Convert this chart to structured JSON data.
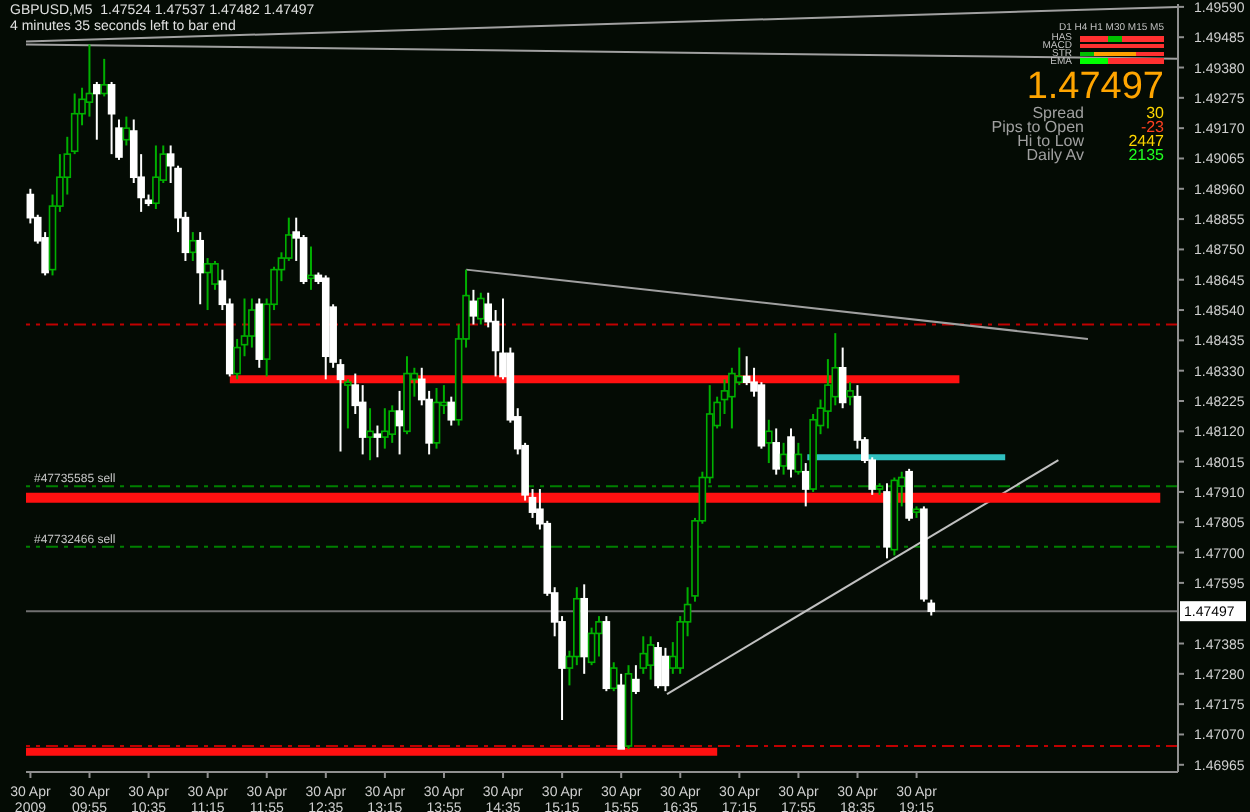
{
  "chart_data": {
    "type": "candlestick",
    "title": "GBPUSD,M5  1.47524 1.47537 1.47482 1.47497",
    "subtitle": "4 minutes 35 seconds left to bar end",
    "annotations": [
      "1.47497",
      "Spread",
      "30",
      "Pips to Open",
      "-23",
      "Hi to Low",
      "2447",
      "Daily Av",
      "2135",
      "D1 H4 H1 M30 M15 M5",
      "HAS",
      "MACD",
      "STR",
      "EMA"
    ],
    "x": [
      "2009-04-30T09:15",
      "2009-04-30T09:20",
      "2009-04-30T09:25",
      "2009-04-30T09:30",
      "2009-04-30T09:35",
      "2009-04-30T09:40",
      "2009-04-30T09:45",
      "2009-04-30T09:50",
      "2009-04-30T09:55",
      "2009-04-30T10:00",
      "2009-04-30T10:05",
      "2009-04-30T10:10",
      "2009-04-30T10:15",
      "2009-04-30T10:20",
      "2009-04-30T10:25",
      "2009-04-30T10:30",
      "2009-04-30T10:35",
      "2009-04-30T10:40",
      "2009-04-30T10:45",
      "2009-04-30T10:50",
      "2009-04-30T10:55",
      "2009-04-30T11:00",
      "2009-04-30T11:05",
      "2009-04-30T11:10",
      "2009-04-30T11:15",
      "2009-04-30T11:20",
      "2009-04-30T11:25",
      "2009-04-30T11:30",
      "2009-04-30T11:35",
      "2009-04-30T11:40",
      "2009-04-30T11:45",
      "2009-04-30T11:50",
      "2009-04-30T11:55",
      "2009-04-30T12:00",
      "2009-04-30T12:05",
      "2009-04-30T12:10",
      "2009-04-30T12:15",
      "2009-04-30T12:20",
      "2009-04-30T12:25",
      "2009-04-30T12:30",
      "2009-04-30T12:35",
      "2009-04-30T12:40",
      "2009-04-30T12:45",
      "2009-04-30T12:50",
      "2009-04-30T12:55",
      "2009-04-30T13:00",
      "2009-04-30T13:05",
      "2009-04-30T13:10",
      "2009-04-30T13:15",
      "2009-04-30T13:20",
      "2009-04-30T13:25",
      "2009-04-30T13:30",
      "2009-04-30T13:35",
      "2009-04-30T13:40",
      "2009-04-30T13:45",
      "2009-04-30T13:50",
      "2009-04-30T13:55",
      "2009-04-30T14:00",
      "2009-04-30T14:05",
      "2009-04-30T14:10",
      "2009-04-30T14:15",
      "2009-04-30T14:20",
      "2009-04-30T14:25",
      "2009-04-30T14:30",
      "2009-04-30T14:35",
      "2009-04-30T14:40",
      "2009-04-30T14:45",
      "2009-04-30T14:50",
      "2009-04-30T14:55",
      "2009-04-30T15:00",
      "2009-04-30T15:05",
      "2009-04-30T15:10",
      "2009-04-30T15:15",
      "2009-04-30T15:20",
      "2009-04-30T15:25",
      "2009-04-30T15:30",
      "2009-04-30T15:35",
      "2009-04-30T15:40",
      "2009-04-30T15:45",
      "2009-04-30T15:50",
      "2009-04-30T15:55",
      "2009-04-30T16:00",
      "2009-04-30T16:05",
      "2009-04-30T16:10",
      "2009-04-30T16:15",
      "2009-04-30T16:20",
      "2009-04-30T16:25",
      "2009-04-30T16:30",
      "2009-04-30T16:35",
      "2009-04-30T16:40",
      "2009-04-30T16:45",
      "2009-04-30T16:50",
      "2009-04-30T16:55",
      "2009-04-30T17:00",
      "2009-04-30T17:05",
      "2009-04-30T17:10",
      "2009-04-30T17:15",
      "2009-04-30T17:20",
      "2009-04-30T17:25",
      "2009-04-30T17:30",
      "2009-04-30T17:35",
      "2009-04-30T17:40",
      "2009-04-30T17:45",
      "2009-04-30T17:50",
      "2009-04-30T17:55",
      "2009-04-30T18:00",
      "2009-04-30T18:05",
      "2009-04-30T18:10",
      "2009-04-30T18:15",
      "2009-04-30T18:20",
      "2009-04-30T18:25",
      "2009-04-30T18:30",
      "2009-04-30T18:35",
      "2009-04-30T18:40",
      "2009-04-30T18:45",
      "2009-04-30T18:50",
      "2009-04-30T18:55",
      "2009-04-30T19:00",
      "2009-04-30T19:05",
      "2009-04-30T19:10",
      "2009-04-30T19:15",
      "2009-04-30T19:20",
      "2009-04-30T19:25"
    ],
    "ohlc": [
      [
        1.4894,
        1.4896,
        1.4884,
        1.4886
      ],
      [
        1.4886,
        1.4887,
        1.4877,
        1.4878
      ],
      [
        1.4879,
        1.4881,
        1.4866,
        1.4867
      ],
      [
        1.4868,
        1.4894,
        1.4866,
        1.489
      ],
      [
        1.489,
        1.4908,
        1.4888,
        1.49
      ],
      [
        1.49,
        1.4914,
        1.4894,
        1.4908
      ],
      [
        1.4909,
        1.4929,
        1.4908,
        1.4922
      ],
      [
        1.4922,
        1.4931,
        1.4918,
        1.4927
      ],
      [
        1.4926,
        1.4946,
        1.4921,
        1.4929
      ],
      [
        1.4932,
        1.4933,
        1.4913,
        1.4929
      ],
      [
        1.4929,
        1.4941,
        1.4928,
        1.4932
      ],
      [
        1.4932,
        1.4933,
        1.4908,
        1.4922
      ],
      [
        1.4917,
        1.492,
        1.4906,
        1.4907
      ],
      [
        1.4913,
        1.4921,
        1.4911,
        1.4917
      ],
      [
        1.4916,
        1.492,
        1.4898,
        1.49
      ],
      [
        1.49,
        1.4908,
        1.4888,
        1.4893
      ],
      [
        1.4892,
        1.4894,
        1.489,
        1.4891
      ],
      [
        1.4891,
        1.4911,
        1.4889,
        1.49
      ],
      [
        1.4899,
        1.4911,
        1.4898,
        1.4908
      ],
      [
        1.4908,
        1.4911,
        1.4898,
        1.4904
      ],
      [
        1.4903,
        1.4904,
        1.4881,
        1.4886
      ],
      [
        1.4886,
        1.4888,
        1.4871,
        1.4874
      ],
      [
        1.4874,
        1.4881,
        1.4871,
        1.4878
      ],
      [
        1.4878,
        1.4881,
        1.4856,
        1.4867
      ],
      [
        1.4867,
        1.4872,
        1.4854,
        1.487
      ],
      [
        1.4863,
        1.4871,
        1.4861,
        1.487
      ],
      [
        1.4864,
        1.4868,
        1.4854,
        1.4856
      ],
      [
        1.4856,
        1.4858,
        1.4831,
        1.4832
      ],
      [
        1.4832,
        1.4844,
        1.483,
        1.4841
      ],
      [
        1.4842,
        1.4858,
        1.4838,
        1.4845
      ],
      [
        1.4845,
        1.4858,
        1.4841,
        1.4854
      ],
      [
        1.4856,
        1.4858,
        1.4834,
        1.4837
      ],
      [
        1.4837,
        1.4858,
        1.4831,
        1.4856
      ],
      [
        1.4856,
        1.4869,
        1.4854,
        1.4868
      ],
      [
        1.4868,
        1.4874,
        1.4864,
        1.4872
      ],
      [
        1.4872,
        1.4886,
        1.4871,
        1.488
      ],
      [
        1.4881,
        1.4886,
        1.4871,
        1.4879
      ],
      [
        1.4879,
        1.488,
        1.4863,
        1.4864
      ],
      [
        1.4865,
        1.4876,
        1.4861,
        1.4866
      ],
      [
        1.4866,
        1.4867,
        1.4863,
        1.4864
      ],
      [
        1.4865,
        1.4866,
        1.483,
        1.4838
      ],
      [
        1.4855,
        1.4856,
        1.4834,
        1.4836
      ],
      [
        1.4835,
        1.4837,
        1.4805,
        1.483
      ],
      [
        1.4828,
        1.483,
        1.4813,
        1.4829
      ],
      [
        1.4828,
        1.4832,
        1.4818,
        1.4821
      ],
      [
        1.4822,
        1.4828,
        1.4804,
        1.481
      ],
      [
        1.481,
        1.482,
        1.4802,
        1.4812
      ],
      [
        1.4811,
        1.4814,
        1.4803,
        1.481
      ],
      [
        1.481,
        1.482,
        1.4806,
        1.4812
      ],
      [
        1.4811,
        1.4821,
        1.4808,
        1.4819
      ],
      [
        1.4819,
        1.4826,
        1.4804,
        1.4814
      ],
      [
        1.4812,
        1.4838,
        1.4811,
        1.4832
      ],
      [
        1.483,
        1.4834,
        1.4824,
        1.4832
      ],
      [
        1.483,
        1.4834,
        1.4821,
        1.4823
      ],
      [
        1.4823,
        1.4826,
        1.4804,
        1.4808
      ],
      [
        1.4808,
        1.4827,
        1.4806,
        1.4822
      ],
      [
        1.4821,
        1.4828,
        1.4818,
        1.4822
      ],
      [
        1.4822,
        1.4824,
        1.4814,
        1.4816
      ],
      [
        1.4816,
        1.4849,
        1.4814,
        1.4844
      ],
      [
        1.4844,
        1.4868,
        1.4841,
        1.4859
      ],
      [
        1.4857,
        1.4861,
        1.4849,
        1.4852
      ],
      [
        1.4851,
        1.486,
        1.4849,
        1.4858
      ],
      [
        1.4856,
        1.486,
        1.4848,
        1.485
      ],
      [
        1.485,
        1.4854,
        1.4831,
        1.484
      ],
      [
        1.4839,
        1.4858,
        1.483,
        1.4831
      ],
      [
        1.4839,
        1.4841,
        1.4815,
        1.4816
      ],
      [
        1.4817,
        1.482,
        1.4804,
        1.4806
      ],
      [
        1.4807,
        1.4808,
        1.4788,
        1.479
      ],
      [
        1.4789,
        1.4792,
        1.4782,
        1.4784
      ],
      [
        1.4785,
        1.4792,
        1.4778,
        1.478
      ],
      [
        1.478,
        1.4781,
        1.4755,
        1.4756
      ],
      [
        1.4756,
        1.4758,
        1.4741,
        1.4746
      ],
      [
        1.4746,
        1.4748,
        1.4712,
        1.473
      ],
      [
        1.473,
        1.4736,
        1.4724,
        1.4734
      ],
      [
        1.4734,
        1.4758,
        1.4731,
        1.4754
      ],
      [
        1.4754,
        1.4759,
        1.4728,
        1.4734
      ],
      [
        1.4732,
        1.4744,
        1.4731,
        1.4742
      ],
      [
        1.4742,
        1.4748,
        1.4734,
        1.4746
      ],
      [
        1.4746,
        1.4748,
        1.4722,
        1.4723
      ],
      [
        1.4723,
        1.4732,
        1.4722,
        1.473
      ],
      [
        1.4724,
        1.4728,
        1.4702,
        1.4702
      ],
      [
        1.4703,
        1.4731,
        1.4702,
        1.4728
      ],
      [
        1.4726,
        1.4731,
        1.4721,
        1.4722
      ],
      [
        1.473,
        1.4741,
        1.4728,
        1.4735
      ],
      [
        1.4731,
        1.4741,
        1.4726,
        1.4738
      ],
      [
        1.4737,
        1.4739,
        1.4723,
        1.4724
      ],
      [
        1.4734,
        1.4737,
        1.4722,
        1.4724
      ],
      [
        1.473,
        1.4739,
        1.4728,
        1.4734
      ],
      [
        1.473,
        1.4748,
        1.4728,
        1.4746
      ],
      [
        1.4746,
        1.4758,
        1.4741,
        1.4752
      ],
      [
        1.4755,
        1.4782,
        1.4753,
        1.4781
      ],
      [
        1.4781,
        1.4798,
        1.478,
        1.4796
      ],
      [
        1.4796,
        1.4828,
        1.4794,
        1.4818
      ],
      [
        1.4814,
        1.4824,
        1.4813,
        1.4822
      ],
      [
        1.4823,
        1.483,
        1.4818,
        1.4826
      ],
      [
        1.4824,
        1.4834,
        1.4813,
        1.4832
      ],
      [
        1.4829,
        1.4841,
        1.4828,
        1.4831
      ],
      [
        1.4831,
        1.4838,
        1.4828,
        1.4829
      ],
      [
        1.4829,
        1.4834,
        1.4824,
        1.4826
      ],
      [
        1.4828,
        1.4829,
        1.4806,
        1.4807
      ],
      [
        1.4808,
        1.4816,
        1.4801,
        1.4812
      ],
      [
        1.4808,
        1.4813,
        1.4797,
        1.4799
      ],
      [
        1.48,
        1.4808,
        1.4797,
        1.4804
      ],
      [
        1.481,
        1.4813,
        1.4796,
        1.4799
      ],
      [
        1.4798,
        1.4808,
        1.4797,
        1.4804
      ],
      [
        1.4798,
        1.4801,
        1.4786,
        1.4792
      ],
      [
        1.4792,
        1.4818,
        1.4791,
        1.4816
      ],
      [
        1.4814,
        1.4823,
        1.4811,
        1.482
      ],
      [
        1.4819,
        1.4837,
        1.4813,
        1.4828
      ],
      [
        1.4824,
        1.4846,
        1.4821,
        1.4834
      ],
      [
        1.4834,
        1.4841,
        1.482,
        1.4822
      ],
      [
        1.4824,
        1.4829,
        1.4821,
        1.4826
      ],
      [
        1.4824,
        1.4828,
        1.4806,
        1.4809
      ],
      [
        1.4809,
        1.481,
        1.4801,
        1.4802
      ],
      [
        1.4802,
        1.4803,
        1.479,
        1.4792
      ],
      [
        1.4792,
        1.4794,
        1.479,
        1.4793
      ],
      [
        1.4791,
        1.4794,
        1.4768,
        1.4772
      ],
      [
        1.4771,
        1.4796,
        1.4769,
        1.4795
      ],
      [
        1.4793,
        1.4798,
        1.4786,
        1.4796
      ],
      [
        1.4798,
        1.4799,
        1.4781,
        1.4782
      ],
      [
        1.4784,
        1.4786,
        1.4782,
        1.4785
      ],
      [
        1.4785,
        1.4786,
        1.4753,
        1.4754
      ],
      [
        1.47524,
        1.47537,
        1.47482,
        1.47497
      ]
    ],
    "series": [
      {
        "type": "line",
        "color": "#a0a0a0",
        "x": [
          "2009-04-30T09:12",
          "2009-04-30T22:12"
        ],
        "values": [
          1.4947,
          1.4959
        ]
      },
      {
        "type": "line",
        "color": "#a0a0a0",
        "x": [
          "2009-04-30T09:12",
          "2009-04-30T22:12"
        ],
        "values": [
          1.4946,
          1.4941
        ]
      },
      {
        "type": "line",
        "color": "#a0a0a0",
        "x": [
          "2009-04-30T14:10",
          "2009-04-30T21:11"
        ],
        "values": [
          1.4868,
          1.4844
        ]
      },
      {
        "type": "line",
        "color": "#c0c0c0",
        "x": [
          "2009-04-30T16:26",
          "2009-04-30T20:51"
        ],
        "values": [
          1.4721,
          1.4802
        ]
      },
      {
        "type": "line",
        "color": "#ff1010",
        "x": [
          "2009-04-30T11:30",
          "2009-04-30T19:44"
        ],
        "values": [
          1.483,
          1.483
        ]
      },
      {
        "type": "line",
        "color": "#ff1010",
        "x": [
          "2009-04-30T09:12",
          "2009-04-30T22:00"
        ],
        "values": [
          1.4789,
          1.4789
        ]
      },
      {
        "type": "line",
        "color": "#ff1010",
        "x": [
          "2009-04-30T09:12",
          "2009-04-30T17:00"
        ],
        "values": [
          1.4701,
          1.4701
        ]
      },
      {
        "type": "line",
        "color": "#30c0c0",
        "x": [
          "2009-04-30T18:01",
          "2009-04-30T20:15"
        ],
        "values": [
          1.4803,
          1.4803
        ]
      }
    ],
    "ref_lines": [
      {
        "axis": "y",
        "value": 1.4849,
        "color": "#c00000",
        "line_style": "dashed"
      },
      {
        "axis": "y",
        "value": 1.4703,
        "color": "#c00000",
        "line_style": "dashed"
      },
      {
        "axis": "y",
        "value": 1.4793,
        "color": "#008000",
        "line_style": "dashed",
        "label": "#47735585 sell"
      },
      {
        "axis": "y",
        "value": 1.4772,
        "color": "#008000",
        "line_style": "dashed",
        "label": "#47732466 sell"
      },
      {
        "axis": "y",
        "value": 1.47497,
        "color": "#707070",
        "line_style": "solid",
        "label": "1.47497"
      }
    ],
    "xlim": [
      "2009-04-30T09:12",
      "2009-04-30T22:12"
    ],
    "xticks": [
      {
        "value": "2009-04-30T09:15",
        "label": "30 Apr 2009"
      },
      {
        "value": "2009-04-30T09:55",
        "label": "30 Apr 09:55"
      },
      {
        "value": "2009-04-30T10:35",
        "label": "30 Apr 10:35"
      },
      {
        "value": "2009-04-30T11:15",
        "label": "30 Apr 11:15"
      },
      {
        "value": "2009-04-30T11:55",
        "label": "30 Apr 11:55"
      },
      {
        "value": "2009-04-30T12:35",
        "label": "30 Apr 12:35"
      },
      {
        "value": "2009-04-30T13:15",
        "label": "30 Apr 13:15"
      },
      {
        "value": "2009-04-30T13:55",
        "label": "30 Apr 13:55"
      },
      {
        "value": "2009-04-30T14:35",
        "label": "30 Apr 14:35"
      },
      {
        "value": "2009-04-30T15:15",
        "label": "30 Apr 15:15"
      },
      {
        "value": "2009-04-30T15:55",
        "label": "30 Apr 15:55"
      },
      {
        "value": "2009-04-30T16:35",
        "label": "30 Apr 16:35"
      },
      {
        "value": "2009-04-30T17:15",
        "label": "30 Apr 17:15"
      },
      {
        "value": "2009-04-30T17:55",
        "label": "30 Apr 17:55"
      },
      {
        "value": "2009-04-30T18:35",
        "label": "30 Apr 18:35"
      },
      {
        "value": "2009-04-30T19:15",
        "label": "30 Apr 19:15"
      }
    ],
    "ylim": [
      1.4694,
      1.496
    ],
    "yticks": [
      {
        "value": 1.46965,
        "label": "1.46965"
      },
      {
        "value": 1.4707,
        "label": "1.47070"
      },
      {
        "value": 1.47175,
        "label": "1.47175"
      },
      {
        "value": 1.4728,
        "label": "1.47280"
      },
      {
        "value": 1.47385,
        "label": "1.47385"
      },
      {
        "value": 1.47595,
        "label": "1.47595"
      },
      {
        "value": 1.477,
        "label": "1.47700"
      },
      {
        "value": 1.47805,
        "label": "1.47805"
      },
      {
        "value": 1.4791,
        "label": "1.47910"
      },
      {
        "value": 1.48015,
        "label": "1.48015"
      },
      {
        "value": 1.4812,
        "label": "1.48120"
      },
      {
        "value": 1.48225,
        "label": "1.48225"
      },
      {
        "value": 1.4833,
        "label": "1.48330"
      },
      {
        "value": 1.48435,
        "label": "1.48435"
      },
      {
        "value": 1.4854,
        "label": "1.48540"
      },
      {
        "value": 1.48645,
        "label": "1.48645"
      },
      {
        "value": 1.4875,
        "label": "1.48750"
      },
      {
        "value": 1.48855,
        "label": "1.48855"
      },
      {
        "value": 1.4896,
        "label": "1.48960"
      },
      {
        "value": 1.49065,
        "label": "1.49065"
      },
      {
        "value": 1.4917,
        "label": "1.49170"
      },
      {
        "value": 1.49275,
        "label": "1.49275"
      },
      {
        "value": 1.4938,
        "label": "1.49380"
      },
      {
        "value": 1.49485,
        "label": "1.49485"
      },
      {
        "value": 1.4959,
        "label": "1.49590"
      }
    ]
  }
}
